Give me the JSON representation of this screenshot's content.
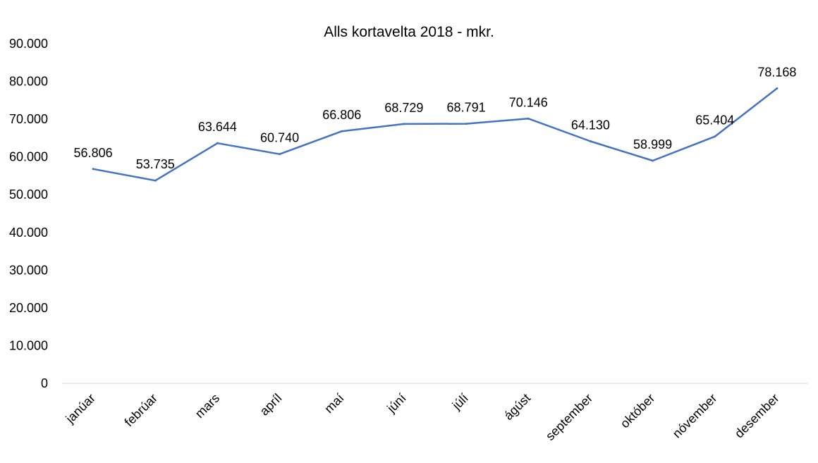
{
  "chart_data": {
    "type": "line",
    "title": "Alls kortavelta 2018 - mkr.",
    "xlabel": "",
    "ylabel": "",
    "categories": [
      "janúar",
      "febrúar",
      "mars",
      "apríl",
      "maí",
      "júní",
      "júlí",
      "ágúst",
      "september",
      "október",
      "nóvember",
      "desember"
    ],
    "series": [
      {
        "values": [
          56806,
          53735,
          63644,
          60740,
          66806,
          68729,
          68791,
          70146,
          64130,
          58999,
          65404,
          78168
        ],
        "labels": [
          "56.806",
          "53.735",
          "63.644",
          "60.740",
          "66.806",
          "68.729",
          "68.791",
          "70.146",
          "64.130",
          "58.999",
          "65.404",
          "78.168"
        ]
      }
    ],
    "ylim": [
      0,
      90000
    ],
    "yticks": [
      0,
      10000,
      20000,
      30000,
      40000,
      50000,
      60000,
      70000,
      80000,
      90000
    ],
    "ytick_labels": [
      "0",
      "10.000",
      "20.000",
      "30.000",
      "40.000",
      "50.000",
      "60.000",
      "70.000",
      "80.000",
      "90.000"
    ],
    "grid": false,
    "legend": "none",
    "colors": {
      "line": "#4472C4",
      "axis": "#D9D9D9",
      "text": "#000000"
    }
  }
}
